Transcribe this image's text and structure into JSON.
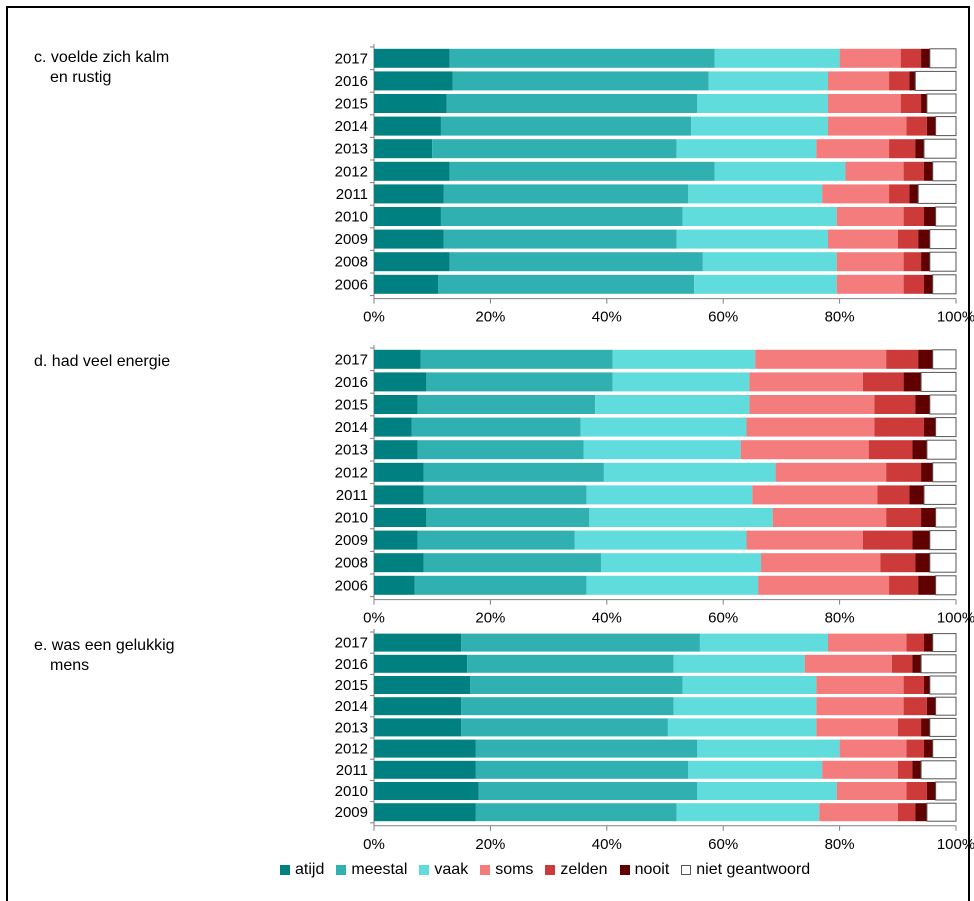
{
  "chart_data": [
    {
      "type": "bar",
      "orientation": "horizontal",
      "stacked": true,
      "panel_label": [
        "c.  voelde zich kalm",
        "en rustig"
      ],
      "categories": [
        "2017",
        "2016",
        "2015",
        "2014",
        "2013",
        "2012",
        "2011",
        "2010",
        "2009",
        "2008",
        "2006"
      ],
      "series_values": [
        [
          13,
          45.5,
          21.5,
          10.5,
          3.5,
          1.5,
          4.5
        ],
        [
          13.5,
          44,
          20.5,
          10.5,
          3.5,
          1,
          7
        ],
        [
          12.5,
          43,
          22.5,
          12.5,
          3.5,
          1,
          5
        ],
        [
          11.5,
          43,
          23.5,
          13.5,
          3.5,
          1.5,
          3.5
        ],
        [
          10,
          42,
          24,
          12.5,
          4.5,
          1.5,
          5.5
        ],
        [
          13,
          45.5,
          22.5,
          10,
          3.5,
          1.5,
          4
        ],
        [
          12,
          42,
          23,
          11.5,
          3.5,
          1.5,
          6.5
        ],
        [
          11.5,
          41.5,
          26.5,
          11.5,
          3.5,
          2,
          3.5
        ],
        [
          12,
          40,
          26,
          12,
          3.5,
          2,
          4.5
        ],
        [
          13,
          43.5,
          23,
          11.5,
          3,
          1.5,
          4.5
        ],
        [
          11,
          44,
          24.5,
          11.5,
          3.5,
          1.5,
          4
        ]
      ],
      "xticks": [
        "0%",
        "20%",
        "40%",
        "60%",
        "80%",
        "100%"
      ],
      "xlim": [
        0,
        100
      ]
    },
    {
      "type": "bar",
      "orientation": "horizontal",
      "stacked": true,
      "panel_label": [
        "d.  had veel energie"
      ],
      "categories": [
        "2017",
        "2016",
        "2015",
        "2014",
        "2013",
        "2012",
        "2011",
        "2010",
        "2009",
        "2008",
        "2006"
      ],
      "series_values": [
        [
          8,
          33,
          24.5,
          22.5,
          5.5,
          2.5,
          4
        ],
        [
          9,
          32,
          23.5,
          19.5,
          7,
          3,
          6
        ],
        [
          7.5,
          30.5,
          26.5,
          21.5,
          7,
          2.5,
          4.5
        ],
        [
          6.5,
          29,
          28.5,
          22,
          8.5,
          2,
          3.5
        ],
        [
          7.5,
          28.5,
          27,
          22,
          7.5,
          2.5,
          5
        ],
        [
          8.5,
          31,
          29.5,
          19,
          6,
          2,
          4
        ],
        [
          8.5,
          28,
          28.5,
          21.5,
          5.5,
          2.5,
          5.5
        ],
        [
          9,
          28,
          31.5,
          19.5,
          6,
          2.5,
          3.5
        ],
        [
          7.5,
          27,
          29.5,
          20,
          8.5,
          3,
          4.5
        ],
        [
          8.5,
          30.5,
          27.5,
          20.5,
          6,
          2.5,
          4.5
        ],
        [
          7,
          29.5,
          29.5,
          22.5,
          5,
          3,
          3.5
        ]
      ],
      "xticks": [
        "0%",
        "20%",
        "40%",
        "60%",
        "80%",
        "100%"
      ],
      "xlim": [
        0,
        100
      ]
    },
    {
      "type": "bar",
      "orientation": "horizontal",
      "stacked": true,
      "panel_label": [
        "e.  was een gelukkig",
        "mens"
      ],
      "categories": [
        "2017",
        "2016",
        "2015",
        "2014",
        "2013",
        "2012",
        "2011",
        "2010",
        "2009"
      ],
      "series_values": [
        [
          15,
          41,
          22,
          13.5,
          3,
          1.5,
          4
        ],
        [
          16,
          35.5,
          22.5,
          15,
          3.5,
          1.5,
          6
        ],
        [
          16.5,
          36.5,
          23,
          15,
          3.5,
          1,
          4.5
        ],
        [
          15,
          36.5,
          24.5,
          15,
          4,
          1.5,
          3.5
        ],
        [
          15,
          35.5,
          25.5,
          14,
          4,
          1.5,
          4.5
        ],
        [
          17.5,
          38,
          24.5,
          11.5,
          3,
          1.5,
          4
        ],
        [
          17.5,
          36.5,
          23,
          13,
          2.5,
          1.5,
          6
        ],
        [
          18,
          37.5,
          24,
          12,
          3.5,
          1.5,
          3.5
        ],
        [
          17.5,
          34.5,
          24.5,
          13.5,
          3,
          2,
          5
        ]
      ],
      "xticks": [
        "0%",
        "20%",
        "40%",
        "60%",
        "80%",
        "100%"
      ],
      "xlim": [
        0,
        100
      ]
    }
  ],
  "series_names": [
    "atijd",
    "meestal",
    "vaak",
    "soms",
    "zelden",
    "nooit",
    "niet geantwoord"
  ],
  "series_colors": [
    "#008080",
    "#30B0B0",
    "#60DCDC",
    "#F47C7C",
    "#CC3A3A",
    "#600000",
    "#FFFFFF"
  ]
}
